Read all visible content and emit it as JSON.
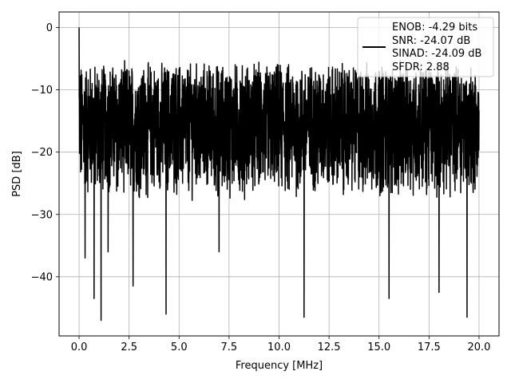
{
  "chart_data": {
    "type": "line",
    "title": "",
    "xlabel": "Frequency [MHz]",
    "ylabel": "PSD [dB]",
    "xlim": [
      -1.0,
      21.0
    ],
    "ylim": [
      -49.5,
      2.5
    ],
    "xticks": [
      0.0,
      2.5,
      5.0,
      7.5,
      10.0,
      12.5,
      15.0,
      17.5,
      20.0
    ],
    "xtick_labels": [
      "0.0",
      "2.5",
      "5.0",
      "7.5",
      "10.0",
      "12.5",
      "15.0",
      "17.5",
      "20.0"
    ],
    "yticks": [
      0,
      -10,
      -20,
      -30,
      -40
    ],
    "ytick_labels": [
      "0",
      "−10",
      "−20",
      "−30",
      "−40"
    ],
    "grid": true,
    "legend_position": "top-right",
    "legend_lines": [
      "ENOB: -4.29 bits",
      "SNR: -24.07 dB",
      "SINAD: -24.09 dB",
      "SFDR: 2.88"
    ],
    "series": [
      {
        "color": "#000000",
        "x_range": [
          0.0,
          20.0
        ],
        "typical_upper_db": -7,
        "typical_lower_db": -26,
        "peak": {
          "x": 0.0,
          "y": 0.0
        },
        "notable_dips": [
          {
            "x": 0.3,
            "y": -37.0
          },
          {
            "x": 0.75,
            "y": -43.5
          },
          {
            "x": 1.1,
            "y": -47.0
          },
          {
            "x": 1.45,
            "y": -36.0
          },
          {
            "x": 2.7,
            "y": -41.5
          },
          {
            "x": 4.35,
            "y": -46.0
          },
          {
            "x": 7.0,
            "y": -36.0
          },
          {
            "x": 11.25,
            "y": -46.5
          },
          {
            "x": 15.5,
            "y": -43.5
          },
          {
            "x": 18.0,
            "y": -42.5
          },
          {
            "x": 19.4,
            "y": -46.5
          }
        ]
      }
    ]
  }
}
